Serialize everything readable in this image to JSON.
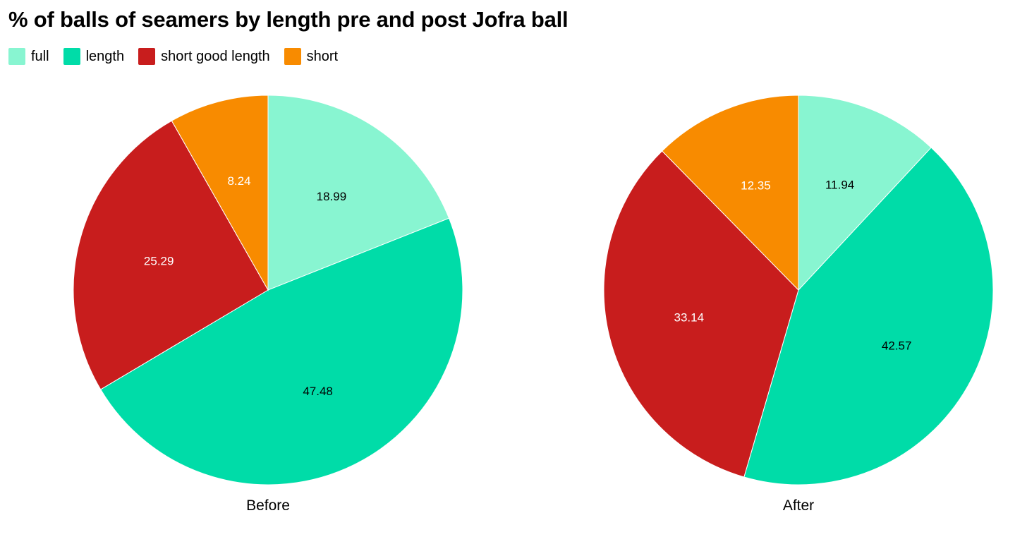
{
  "chart_data": {
    "type": "pie",
    "title": "% of balls of seamers by length pre and post Jofra ball",
    "legend_position": "top-left",
    "categories": [
      "full",
      "length",
      "short good length",
      "short"
    ],
    "colors": [
      "#88f5d1",
      "#00dca8",
      "#c81d1d",
      "#f88b00"
    ],
    "label_colors": [
      "#000000",
      "#000000",
      "#ffffff",
      "#ffffff"
    ],
    "pies": [
      {
        "name": "Before",
        "values": [
          18.99,
          47.48,
          25.29,
          8.24
        ]
      },
      {
        "name": "After",
        "values": [
          11.94,
          42.57,
          33.14,
          12.35
        ]
      }
    ]
  }
}
